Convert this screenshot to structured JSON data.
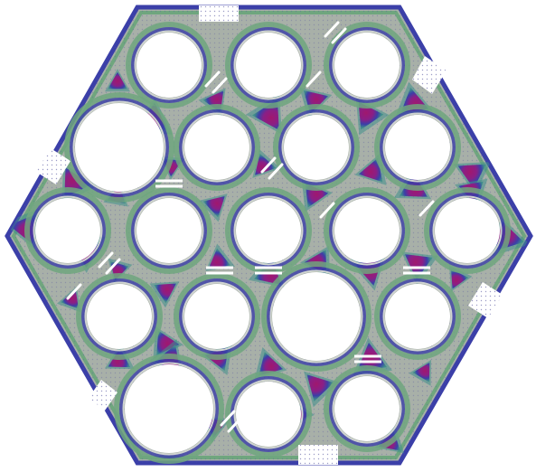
{
  "figure": {
    "colors": {
      "background": "#ffffff",
      "plate_fill": "#a8b0a8",
      "green_band": "#6fa67e",
      "teal_band": "#3f8f8a",
      "blue_band": "#3b3fa8",
      "purple_band": "#6a2aa0",
      "magenta_core": "#a0186e",
      "hole_fill": "#ffffff",
      "edge_line": "#7a9a8a"
    },
    "holes": [
      {
        "id": "r1-1"
      },
      {
        "id": "r1-2"
      },
      {
        "id": "r1-3"
      },
      {
        "id": "r2-1"
      },
      {
        "id": "r2-2"
      },
      {
        "id": "r2-3"
      },
      {
        "id": "r2-4"
      },
      {
        "id": "r3-1"
      },
      {
        "id": "r3-2"
      },
      {
        "id": "r3-3"
      },
      {
        "id": "r3-4"
      },
      {
        "id": "r3-5"
      },
      {
        "id": "r4-1"
      },
      {
        "id": "r4-2"
      },
      {
        "id": "r4-3"
      },
      {
        "id": "r4-4"
      },
      {
        "id": "r5-1"
      },
      {
        "id": "r5-2"
      },
      {
        "id": "r5-3"
      }
    ],
    "boundary_gaps": 6,
    "slits": 14
  }
}
